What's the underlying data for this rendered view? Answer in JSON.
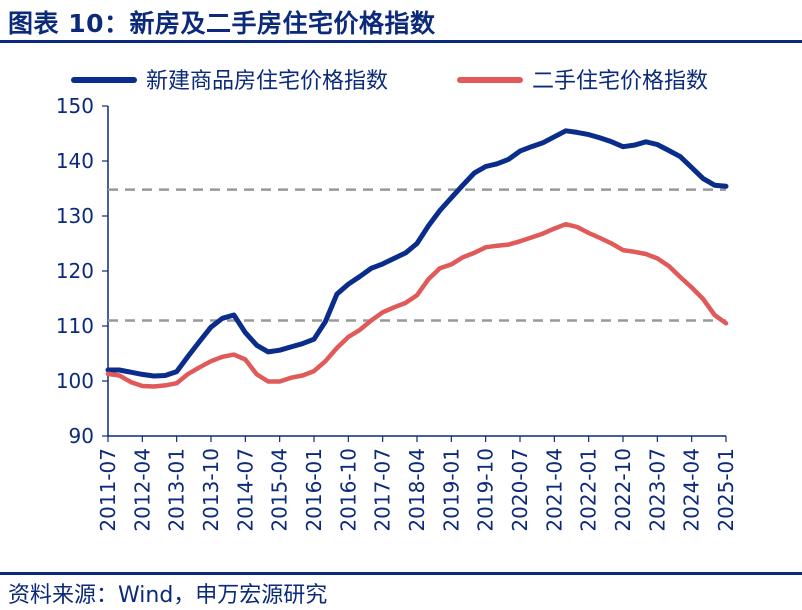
{
  "header": {
    "title": "图表 10：新房及二手房住宅价格指数"
  },
  "footer": {
    "source": "资料来源：Wind，申万宏源研究"
  },
  "colors": {
    "new_home": "#0a2d8c",
    "second_hand": "#e05a5a",
    "ref_line": "#999999",
    "axis": "#0b2a7a"
  },
  "chart_data": {
    "type": "line",
    "title": "",
    "xlabel": "",
    "ylabel": "",
    "ylim": [
      90,
      150
    ],
    "yticks": [
      90,
      100,
      110,
      120,
      130,
      140,
      150
    ],
    "xticks": [
      "2011-07",
      "2012-04",
      "2013-01",
      "2013-10",
      "2014-07",
      "2015-04",
      "2016-01",
      "2016-10",
      "2017-07",
      "2018-04",
      "2019-01",
      "2019-10",
      "2020-07",
      "2021-04",
      "2022-01",
      "2022-10",
      "2023-07",
      "2024-04",
      "2025-01"
    ],
    "grid": false,
    "legend": "top",
    "reference_lines": [
      {
        "y": 134.8,
        "style": "dashed"
      },
      {
        "y": 111.0,
        "style": "dashed"
      }
    ],
    "series": [
      {
        "name": "新建商品房住宅价格指数",
        "points": [
          [
            "2011-07",
            102.0
          ],
          [
            "2011-10",
            102.0
          ],
          [
            "2012-01",
            101.6
          ],
          [
            "2012-04",
            101.2
          ],
          [
            "2012-07",
            100.9
          ],
          [
            "2012-10",
            101.0
          ],
          [
            "2013-01",
            101.7
          ],
          [
            "2013-04",
            104.5
          ],
          [
            "2013-07",
            107.2
          ],
          [
            "2013-10",
            109.8
          ],
          [
            "2014-01",
            111.4
          ],
          [
            "2014-04",
            112.0
          ],
          [
            "2014-07",
            108.8
          ],
          [
            "2014-10",
            106.5
          ],
          [
            "2015-01",
            105.3
          ],
          [
            "2015-04",
            105.6
          ],
          [
            "2015-07",
            106.2
          ],
          [
            "2015-10",
            106.8
          ],
          [
            "2016-01",
            107.6
          ],
          [
            "2016-04",
            110.8
          ],
          [
            "2016-07",
            115.8
          ],
          [
            "2016-10",
            117.6
          ],
          [
            "2017-01",
            119.0
          ],
          [
            "2017-04",
            120.5
          ],
          [
            "2017-07",
            121.3
          ],
          [
            "2017-10",
            122.3
          ],
          [
            "2018-01",
            123.3
          ],
          [
            "2018-04",
            125.0
          ],
          [
            "2018-07",
            128.2
          ],
          [
            "2018-10",
            131.0
          ],
          [
            "2019-01",
            133.3
          ],
          [
            "2019-04",
            135.6
          ],
          [
            "2019-07",
            137.8
          ],
          [
            "2019-10",
            139.0
          ],
          [
            "2020-01",
            139.5
          ],
          [
            "2020-04",
            140.3
          ],
          [
            "2020-07",
            141.8
          ],
          [
            "2020-10",
            142.6
          ],
          [
            "2021-01",
            143.3
          ],
          [
            "2021-04",
            144.4
          ],
          [
            "2021-07",
            145.5
          ],
          [
            "2021-10",
            145.2
          ],
          [
            "2022-01",
            144.8
          ],
          [
            "2022-04",
            144.2
          ],
          [
            "2022-07",
            143.5
          ],
          [
            "2022-10",
            142.6
          ],
          [
            "2023-01",
            142.9
          ],
          [
            "2023-04",
            143.5
          ],
          [
            "2023-07",
            143.0
          ],
          [
            "2023-10",
            141.9
          ],
          [
            "2024-01",
            140.8
          ],
          [
            "2024-04",
            138.8
          ],
          [
            "2024-07",
            136.8
          ],
          [
            "2024-10",
            135.6
          ],
          [
            "2025-01",
            135.4
          ]
        ]
      },
      {
        "name": "二手住宅价格指数",
        "points": [
          [
            "2011-07",
            101.3
          ],
          [
            "2011-10",
            101.0
          ],
          [
            "2012-01",
            99.8
          ],
          [
            "2012-04",
            99.1
          ],
          [
            "2012-07",
            99.0
          ],
          [
            "2012-10",
            99.2
          ],
          [
            "2013-01",
            99.6
          ],
          [
            "2013-04",
            101.3
          ],
          [
            "2013-07",
            102.5
          ],
          [
            "2013-10",
            103.6
          ],
          [
            "2014-01",
            104.4
          ],
          [
            "2014-04",
            104.8
          ],
          [
            "2014-07",
            103.9
          ],
          [
            "2014-10",
            101.2
          ],
          [
            "2015-01",
            99.9
          ],
          [
            "2015-04",
            99.9
          ],
          [
            "2015-07",
            100.6
          ],
          [
            "2015-10",
            101.0
          ],
          [
            "2016-01",
            101.8
          ],
          [
            "2016-04",
            103.6
          ],
          [
            "2016-07",
            106.0
          ],
          [
            "2016-10",
            108.0
          ],
          [
            "2017-01",
            109.3
          ],
          [
            "2017-04",
            111.0
          ],
          [
            "2017-07",
            112.5
          ],
          [
            "2017-10",
            113.4
          ],
          [
            "2018-01",
            114.2
          ],
          [
            "2018-04",
            115.6
          ],
          [
            "2018-07",
            118.5
          ],
          [
            "2018-10",
            120.5
          ],
          [
            "2019-01",
            121.2
          ],
          [
            "2019-04",
            122.5
          ],
          [
            "2019-07",
            123.3
          ],
          [
            "2019-10",
            124.3
          ],
          [
            "2020-01",
            124.6
          ],
          [
            "2020-04",
            124.8
          ],
          [
            "2020-07",
            125.4
          ],
          [
            "2020-10",
            126.1
          ],
          [
            "2021-01",
            126.8
          ],
          [
            "2021-04",
            127.7
          ],
          [
            "2021-07",
            128.5
          ],
          [
            "2021-10",
            128.0
          ],
          [
            "2022-01",
            126.9
          ],
          [
            "2022-04",
            126.0
          ],
          [
            "2022-07",
            125.0
          ],
          [
            "2022-10",
            123.8
          ],
          [
            "2023-01",
            123.5
          ],
          [
            "2023-04",
            123.1
          ],
          [
            "2023-07",
            122.3
          ],
          [
            "2023-10",
            120.9
          ],
          [
            "2024-01",
            118.9
          ],
          [
            "2024-04",
            117.0
          ],
          [
            "2024-07",
            114.9
          ],
          [
            "2024-10",
            112.0
          ],
          [
            "2025-01",
            110.5
          ]
        ]
      }
    ]
  }
}
